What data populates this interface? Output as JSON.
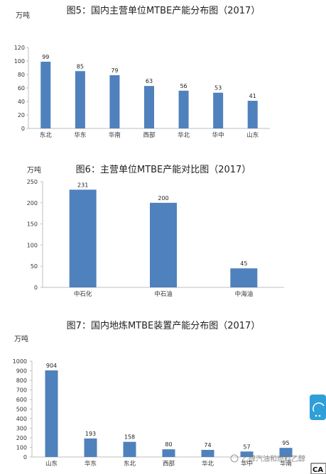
{
  "chart_data": [
    {
      "type": "bar",
      "title": "图5：国内主营单位MTBE产能分布图（2017）",
      "unit_label": "万吨",
      "categories": [
        "东北",
        "华东",
        "华南",
        "西部",
        "华北",
        "华中",
        "山东"
      ],
      "values": [
        99,
        85,
        79,
        63,
        56,
        53,
        41
      ],
      "ylim": [
        0,
        120
      ],
      "yticks": [
        0,
        20,
        40,
        60,
        80,
        100,
        120
      ],
      "grid": false,
      "bar_color": "#4f81bd"
    },
    {
      "type": "bar",
      "title": "图6：主营单位MTBE产能对比图（2017）",
      "unit_label": "万吨",
      "categories": [
        "中石化",
        "中石油",
        "中海油"
      ],
      "values": [
        231,
        200,
        45
      ],
      "ylim": [
        0,
        250
      ],
      "yticks": [
        0,
        50,
        100,
        150,
        200,
        250
      ],
      "grid": false,
      "bar_color": "#4f81bd"
    },
    {
      "type": "bar",
      "title": "图7：国内地炼MTBE装置产能分布图（2017）",
      "unit_label": "万吨",
      "categories": [
        "山东",
        "华东",
        "东北",
        "西部",
        "华北",
        "华中",
        "华南"
      ],
      "values": [
        904,
        193,
        158,
        80,
        74,
        57,
        95
      ],
      "ylim": [
        0,
        1000
      ],
      "yticks": [
        0,
        100,
        200,
        300,
        400,
        500,
        600,
        700,
        800,
        900,
        1000
      ],
      "grid": false,
      "bar_color": "#4f81bd"
    }
  ],
  "watermark_text": "乙醇汽油和燃料乙醇",
  "corner_badge": "CA"
}
